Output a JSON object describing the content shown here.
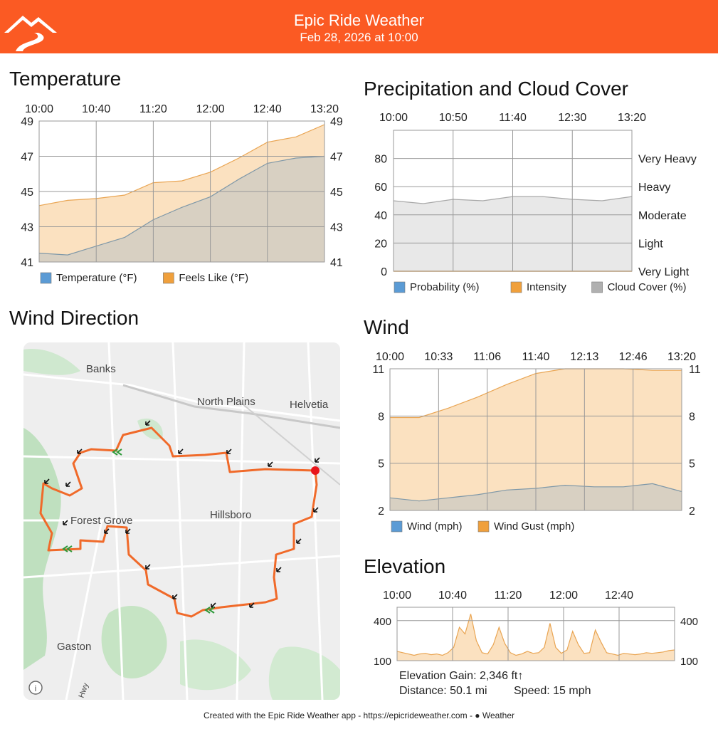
{
  "header": {
    "title": "Epic Ride Weather",
    "subtitle": "Feb 28, 2026 at 10:00",
    "color": "#fb5a23",
    "logo_icon": "mountain-road-icon"
  },
  "temperature": {
    "title": "Temperature",
    "x_ticks": [
      "10:00",
      "10:40",
      "11:20",
      "12:00",
      "12:40",
      "13:20"
    ],
    "y_ticks": [
      "49",
      "47",
      "45",
      "43",
      "41"
    ],
    "legend": [
      {
        "label": "Temperature (°F)",
        "color": "#5b9bd5"
      },
      {
        "label": "Feels Like (°F)",
        "color": "#f0a03c"
      }
    ],
    "chart_data": {
      "type": "area",
      "ylim": [
        41,
        49
      ],
      "x": [
        "10:00",
        "10:20",
        "10:40",
        "11:00",
        "11:20",
        "11:40",
        "12:00",
        "12:20",
        "12:40",
        "13:00",
        "13:20"
      ],
      "series": [
        {
          "name": "Temperature (°F)",
          "values": [
            41.5,
            41.4,
            41.9,
            42.4,
            43.4,
            44.1,
            44.7,
            45.7,
            46.6,
            46.9,
            47.0
          ]
        },
        {
          "name": "Feels Like (°F)",
          "values": [
            44.2,
            44.5,
            44.6,
            44.8,
            45.5,
            45.6,
            46.1,
            46.9,
            47.8,
            48.1,
            48.8
          ]
        }
      ]
    }
  },
  "precip": {
    "title": "Precipitation and Cloud Cover",
    "x_ticks": [
      "10:00",
      "10:50",
      "11:40",
      "12:30",
      "13:20"
    ],
    "y_ticks": [
      "80",
      "60",
      "40",
      "20",
      "0"
    ],
    "right_labels": [
      "Very Heavy",
      "Heavy",
      "Moderate",
      "Light",
      "Very Light"
    ],
    "legend": [
      {
        "label": "Probability (%)",
        "color": "#5b9bd5"
      },
      {
        "label": "Intensity",
        "color": "#f0a03c"
      },
      {
        "label": "Cloud Cover (%)",
        "color": "#b0b0b0"
      }
    ],
    "chart_data": {
      "type": "area",
      "ylim": [
        0,
        100
      ],
      "x": [
        "10:00",
        "10:25",
        "10:50",
        "11:15",
        "11:40",
        "12:05",
        "12:30",
        "12:55",
        "13:20"
      ],
      "series": [
        {
          "name": "Probability (%)",
          "values": [
            0,
            0,
            0,
            0,
            0,
            0,
            0,
            0,
            0
          ]
        },
        {
          "name": "Intensity",
          "values": [
            0,
            0,
            0,
            0,
            0,
            0,
            0,
            0,
            0
          ]
        },
        {
          "name": "Cloud Cover (%)",
          "values": [
            50,
            48,
            51,
            50,
            53,
            53,
            51,
            50,
            53
          ]
        }
      ]
    }
  },
  "wind_direction": {
    "title": "Wind Direction",
    "places": [
      "Banks",
      "North Plains",
      "Helvetia",
      "Forest Grove",
      "Hillsboro",
      "Gaston",
      "Hwy"
    ],
    "info_icon": "info-icon"
  },
  "wind": {
    "title": "Wind",
    "x_ticks": [
      "10:00",
      "10:33",
      "11:06",
      "11:40",
      "12:13",
      "12:46",
      "13:20"
    ],
    "y_ticks": [
      "11",
      "8",
      "5",
      "2"
    ],
    "legend": [
      {
        "label": "Wind (mph)",
        "color": "#5b9bd5"
      },
      {
        "label": "Wind Gust (mph)",
        "color": "#f0a03c"
      }
    ],
    "chart_data": {
      "type": "area",
      "ylim": [
        2,
        11
      ],
      "x": [
        "10:00",
        "10:20",
        "10:40",
        "11:00",
        "11:20",
        "11:40",
        "12:00",
        "12:20",
        "12:40",
        "13:00",
        "13:20"
      ],
      "series": [
        {
          "name": "Wind (mph)",
          "values": [
            2.8,
            2.6,
            2.8,
            3.0,
            3.3,
            3.4,
            3.6,
            3.5,
            3.5,
            3.7,
            3.2
          ]
        },
        {
          "name": "Wind Gust (mph)",
          "values": [
            7.9,
            7.9,
            8.5,
            9.2,
            10.0,
            10.7,
            11.0,
            11.0,
            11.0,
            10.9,
            10.9
          ]
        }
      ]
    }
  },
  "elevation": {
    "title": "Elevation",
    "x_ticks": [
      "10:00",
      "10:40",
      "11:20",
      "12:00",
      "12:40"
    ],
    "y_ticks": [
      "400",
      "100"
    ],
    "gain": "Elevation Gain: 2,346 ft↑",
    "distance": "Distance: 50.1 mi",
    "speed": "Speed: 15 mph",
    "chart_data": {
      "type": "area",
      "ylim": [
        100,
        500
      ],
      "values": [
        170,
        160,
        150,
        140,
        150,
        155,
        145,
        150,
        140,
        160,
        200,
        350,
        300,
        450,
        250,
        160,
        150,
        220,
        350,
        230,
        160,
        140,
        150,
        170,
        155,
        160,
        200,
        380,
        200,
        155,
        180,
        320,
        220,
        155,
        160,
        330,
        240,
        160,
        150,
        140,
        155,
        150,
        145,
        150,
        160,
        155,
        160,
        165,
        175,
        180
      ]
    }
  },
  "footer": {
    "text": "Created with the Epic Ride Weather app - https://epicrideweather.com - ",
    "brand_icon": "apple-logo-icon",
    "brand": "Weather"
  }
}
